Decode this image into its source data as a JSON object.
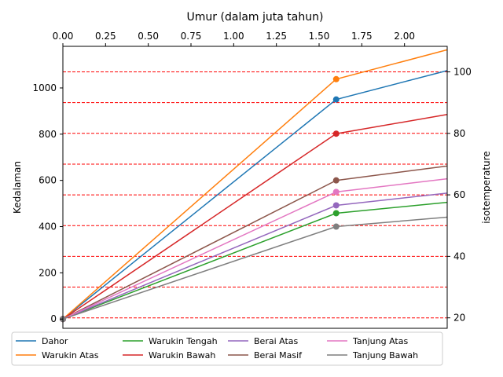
{
  "chart_data": {
    "type": "line",
    "title": "",
    "top_axis": {
      "label": "Umur (dalam juta tahun)",
      "range": [
        0,
        2.25
      ],
      "ticks": [
        0,
        0.25,
        0.5,
        0.75,
        1.0,
        1.25,
        1.5,
        1.75,
        2.0
      ],
      "tick_labels": [
        "0.00",
        "0.25",
        "0.50",
        "0.75",
        "1.00",
        "1.25",
        "1.50",
        "1.75",
        "2.00"
      ]
    },
    "left_axis": {
      "label": "Kedalaman",
      "range": [
        -40,
        1180
      ],
      "ticks": [
        0,
        200,
        400,
        600,
        800,
        1000
      ],
      "tick_labels": [
        "0",
        "200",
        "400",
        "600",
        "800",
        "1000"
      ]
    },
    "right_axis": {
      "label": "isotemperature",
      "range": [
        16.6,
        108.3
      ],
      "ticks": [
        20,
        40,
        60,
        80,
        100
      ],
      "tick_labels": [
        "20",
        "40",
        "60",
        "80",
        "100"
      ]
    },
    "isotherm_lines": [
      20,
      30,
      40,
      50,
      60,
      70,
      80,
      90,
      100
    ],
    "isotherm_color": "#ff0000",
    "grid": false,
    "legend_placement": "bottom",
    "marker_x": 1.6,
    "series": [
      {
        "name": "Dahor",
        "color": "#1f77b4",
        "x": [
          0,
          1.6,
          2.25
        ],
        "y": [
          0,
          950,
          1075
        ]
      },
      {
        "name": "Warukin Atas",
        "color": "#ff7f0e",
        "x": [
          0,
          1.6,
          2.25
        ],
        "y": [
          0,
          1038,
          1165
        ]
      },
      {
        "name": "Warukin Tengah",
        "color": "#2ca02c",
        "x": [
          0,
          1.6,
          2.25
        ],
        "y": [
          0,
          458,
          505
        ]
      },
      {
        "name": "Warukin Bawah",
        "color": "#d62728",
        "x": [
          0,
          1.6,
          2.25
        ],
        "y": [
          0,
          802,
          885
        ]
      },
      {
        "name": "Berai Atas",
        "color": "#9467bd",
        "x": [
          0,
          1.6,
          2.25
        ],
        "y": [
          0,
          492,
          545
        ]
      },
      {
        "name": "Berai Masif",
        "color": "#8c564b",
        "x": [
          0,
          1.6,
          2.25
        ],
        "y": [
          0,
          600,
          662
        ]
      },
      {
        "name": "Tanjung Atas",
        "color": "#e377c2",
        "x": [
          0,
          1.6,
          2.25
        ],
        "y": [
          0,
          550,
          607
        ]
      },
      {
        "name": "Tanjung Bawah",
        "color": "#7f7f7f",
        "x": [
          0,
          1.6,
          2.25
        ],
        "y": [
          0,
          400,
          441
        ]
      }
    ]
  }
}
